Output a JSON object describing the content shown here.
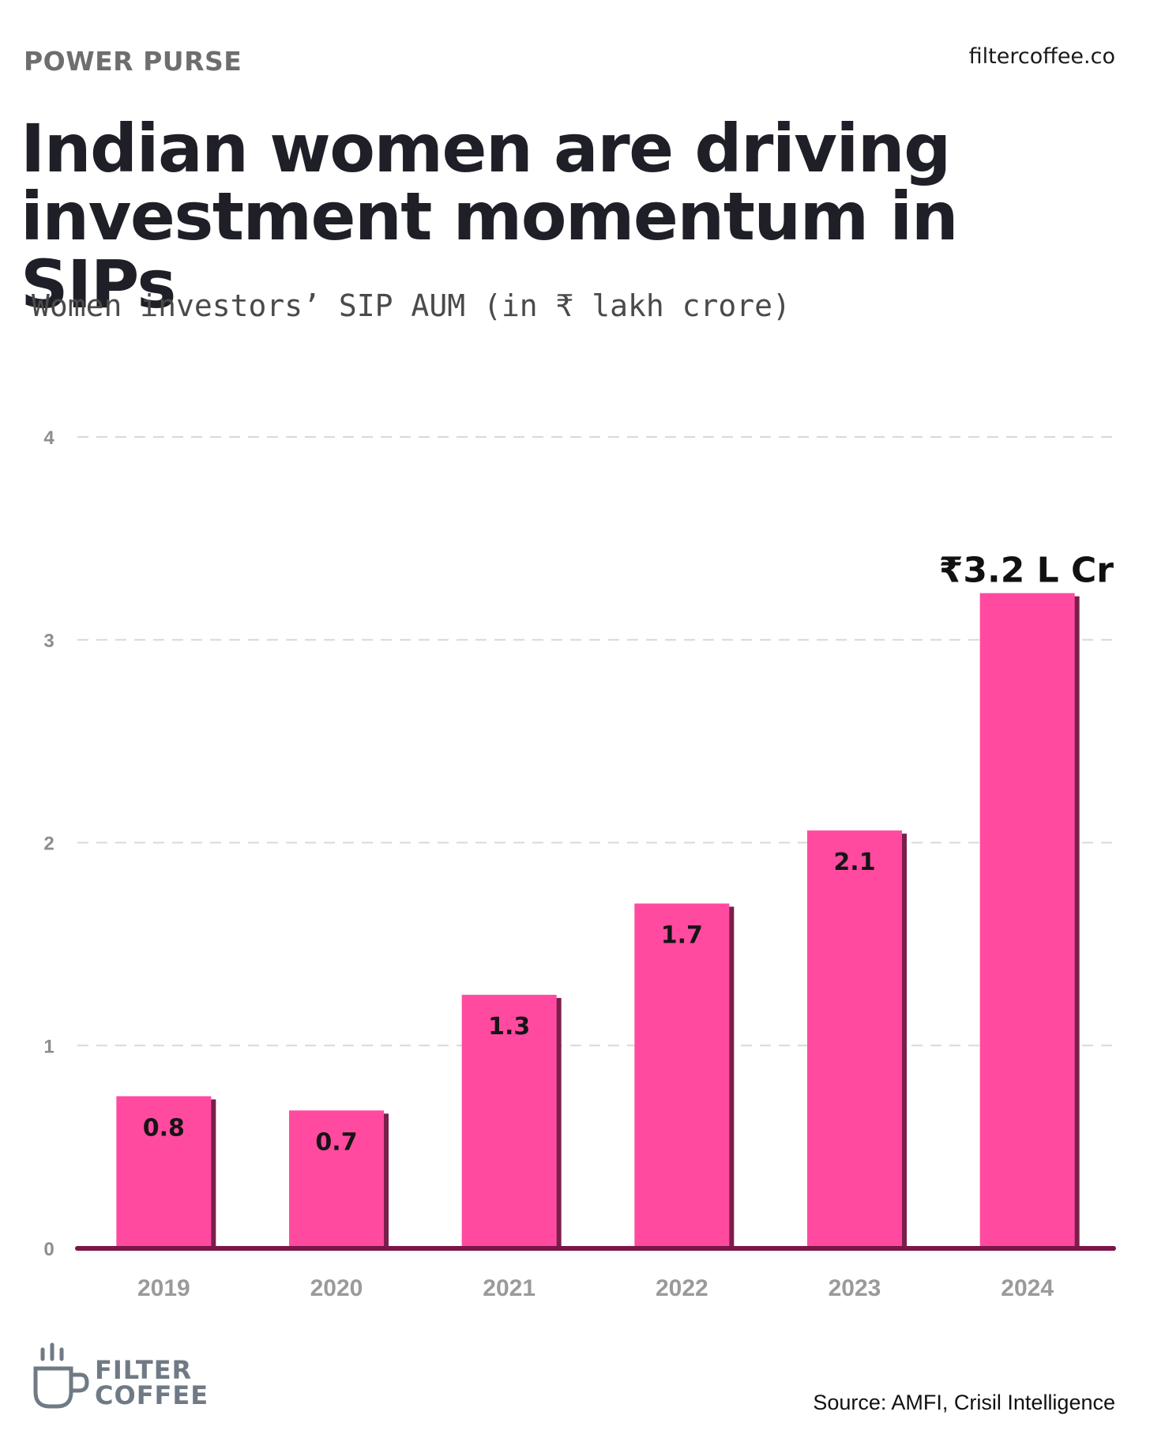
{
  "header": {
    "kicker": "POWER PURSE",
    "site": "filtercoffee.co",
    "title": "Indian women are driving investment momentum in SIPs",
    "subtitle": "Women investors’ SIP AUM (in ₹ lakh crore)"
  },
  "footer": {
    "brand_line1": "FILTER",
    "brand_line2": "COFFEE",
    "source": "Source: AMFI, Crisil Intelligence"
  },
  "colors": {
    "bar": "#ff4aa0",
    "bar_shadow": "#7a1f4b",
    "baseline": "#7a1648",
    "grid": "#d9d9d9"
  },
  "chart_data": {
    "type": "bar",
    "title": "Women investors’ SIP AUM (in ₹ lakh crore)",
    "categories": [
      "2019",
      "2020",
      "2021",
      "2022",
      "2023",
      "2024"
    ],
    "values": [
      0.75,
      0.68,
      1.25,
      1.7,
      2.06,
      3.23
    ],
    "data_labels": [
      "0.8",
      "0.7",
      "1.3",
      "1.7",
      "2.1",
      ""
    ],
    "callout": {
      "category": "2024",
      "text": "₹3.2 L Cr"
    },
    "yticks": [
      0,
      1,
      2,
      3,
      4
    ],
    "ylim": [
      0,
      4
    ],
    "grid": true,
    "legend": "none"
  }
}
